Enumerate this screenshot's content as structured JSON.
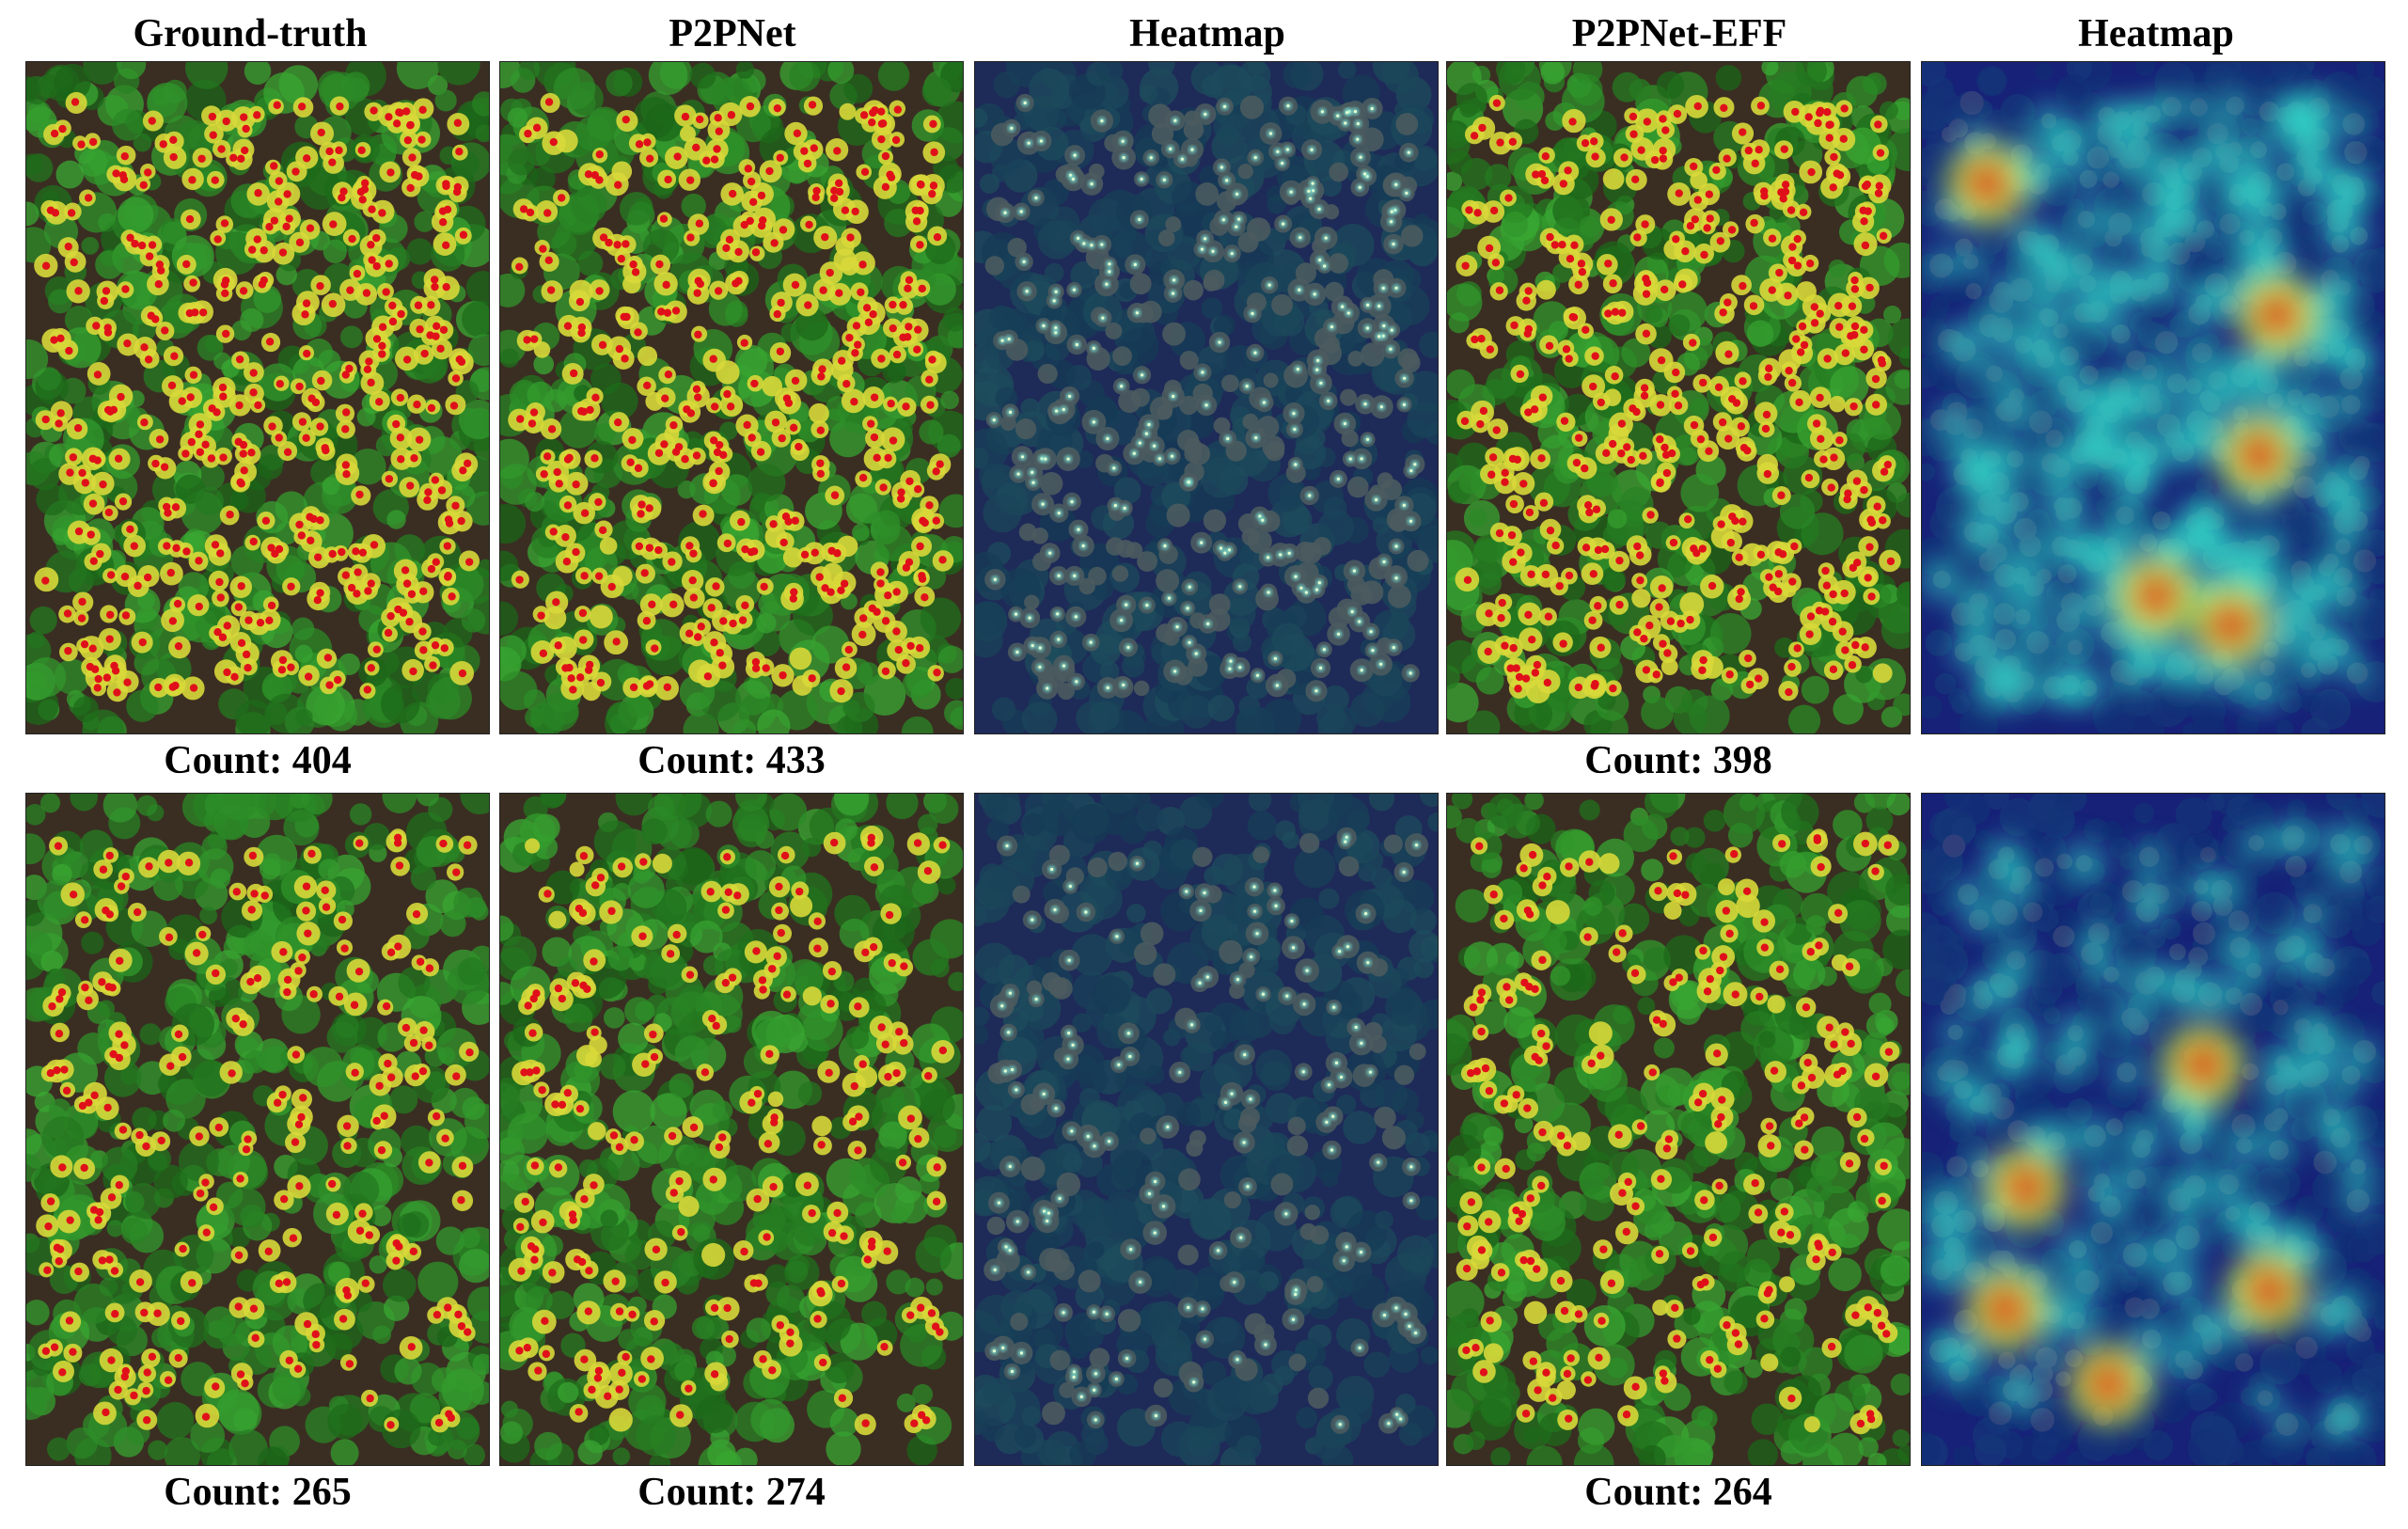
{
  "columns": [
    {
      "title": "Ground-truth",
      "kind": "rgb"
    },
    {
      "title": "P2PNet",
      "kind": "rgb"
    },
    {
      "title": "Heatmap",
      "kind": "dim"
    },
    {
      "title": "P2PNet-EFF",
      "kind": "rgb"
    },
    {
      "title": "Heatmap",
      "kind": "jet"
    }
  ],
  "rows": [
    {
      "counts": [
        "Count: 404",
        "Count: 433",
        "",
        "Count: 398",
        ""
      ],
      "flower_rows": 9,
      "seed": 11
    },
    {
      "counts": [
        "Count: 265",
        "Count: 274",
        "",
        "Count: 264",
        ""
      ],
      "flower_rows": 7,
      "seed": 37
    }
  ],
  "colors": {
    "point_marker": "#e0101a",
    "flower": "#d8d83a",
    "foliage": "#2f6a2a",
    "background_soil": "#3a2e22",
    "heatmap_dark": "#142a6e"
  }
}
